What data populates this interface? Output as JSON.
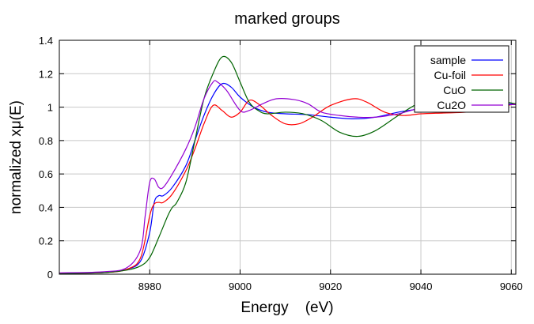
{
  "chart_data": {
    "type": "line",
    "title": "marked groups",
    "xlabel": "Energy    (eV)",
    "ylabel": "normalized xμ(E)",
    "xlim": [
      8960,
      9061
    ],
    "ylim": [
      0,
      1.4
    ],
    "xticks": [
      8980,
      9000,
      9020,
      9040,
      9060
    ],
    "yticks": [
      0,
      0.2,
      0.4,
      0.6,
      0.8,
      1,
      1.2,
      1.4
    ],
    "grid": true,
    "legend_position": "top-right",
    "series": [
      {
        "name": "sample",
        "color": "#0000ff",
        "x": [
          8960,
          8970,
          8975,
          8978,
          8980,
          8981,
          8982,
          8983,
          8985,
          8988,
          8990,
          8992,
          8994,
          8996,
          8998,
          9000,
          9003,
          9006,
          9010,
          9015,
          9020,
          9025,
          9030,
          9035,
          9040,
          9045,
          9050,
          9055,
          9061
        ],
        "y": [
          0.005,
          0.01,
          0.03,
          0.08,
          0.25,
          0.43,
          0.47,
          0.47,
          0.52,
          0.65,
          0.8,
          0.95,
          1.07,
          1.14,
          1.12,
          1.06,
          1.0,
          0.97,
          0.96,
          0.955,
          0.94,
          0.93,
          0.94,
          0.97,
          0.99,
          1.0,
          1.01,
          1.015,
          1.02
        ]
      },
      {
        "name": "Cu-foil",
        "color": "#ff0000",
        "x": [
          8960,
          8970,
          8975,
          8978,
          8980,
          8981,
          8982,
          8983,
          8985,
          8988,
          8990,
          8992,
          8994,
          8996,
          8998,
          9000,
          9002,
          9004,
          9007,
          9010,
          9013,
          9016,
          9020,
          9025,
          9028,
          9032,
          9036,
          9040,
          9045,
          9050,
          9055,
          9061
        ],
        "y": [
          0.005,
          0.01,
          0.03,
          0.1,
          0.35,
          0.42,
          0.43,
          0.43,
          0.48,
          0.62,
          0.75,
          0.9,
          1.01,
          0.98,
          0.94,
          0.97,
          1.04,
          1.02,
          0.95,
          0.9,
          0.9,
          0.94,
          1.01,
          1.05,
          1.03,
          0.97,
          0.95,
          0.96,
          0.965,
          0.97,
          0.99,
          1.02
        ]
      },
      {
        "name": "CuO",
        "color": "#006400",
        "x": [
          8960,
          8970,
          8975,
          8978,
          8980,
          8982,
          8984,
          8985,
          8986,
          8988,
          8990,
          8992,
          8994,
          8996,
          8998,
          9000,
          9002,
          9004,
          9006,
          9010,
          9014,
          9018,
          9022,
          9026,
          9030,
          9035,
          9040,
          9045,
          9050,
          9055,
          9061
        ],
        "y": [
          0.003,
          0.01,
          0.025,
          0.05,
          0.1,
          0.22,
          0.35,
          0.4,
          0.43,
          0.55,
          0.8,
          1.05,
          1.2,
          1.3,
          1.27,
          1.15,
          1.03,
          0.98,
          0.96,
          0.97,
          0.96,
          0.92,
          0.85,
          0.825,
          0.86,
          0.95,
          1.03,
          1.065,
          1.07,
          1.05,
          1.02
        ]
      },
      {
        "name": "Cu2O",
        "color": "#9400d3",
        "x": [
          8960,
          8970,
          8975,
          8978,
          8979,
          8980,
          8981,
          8982,
          8983,
          8985,
          8988,
          8990,
          8992,
          8994,
          8995,
          8997,
          9000,
          9002,
          9005,
          9008,
          9012,
          9015,
          9018,
          9022,
          9026,
          9030,
          9035,
          9040,
          9045,
          9050,
          9055,
          9061
        ],
        "y": [
          0.008,
          0.015,
          0.04,
          0.15,
          0.35,
          0.55,
          0.57,
          0.52,
          0.52,
          0.6,
          0.75,
          0.88,
          1.05,
          1.15,
          1.15,
          1.1,
          0.98,
          0.98,
          1.02,
          1.05,
          1.045,
          1.02,
          0.97,
          0.95,
          0.94,
          0.94,
          0.96,
          0.995,
          1.01,
          1.015,
          1.015,
          1.015
        ]
      }
    ]
  }
}
